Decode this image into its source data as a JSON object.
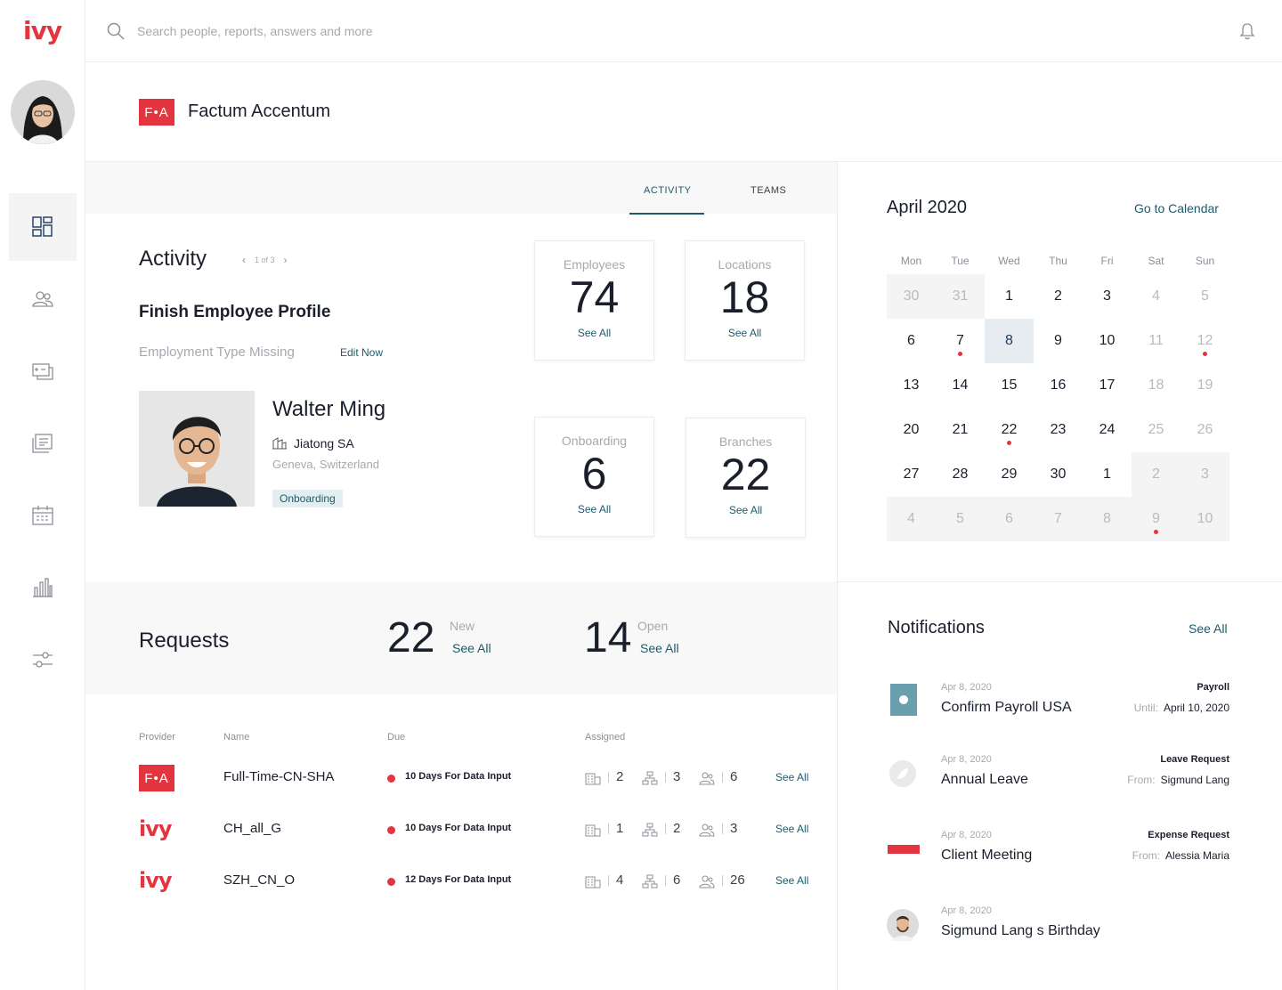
{
  "app": {
    "logo": "ivy"
  },
  "search": {
    "placeholder": "Search people, reports, answers and more"
  },
  "company": {
    "badge": "F•A",
    "name": "Factum Accentum"
  },
  "tabs": [
    {
      "label": "ACTIVITY",
      "active": true
    },
    {
      "label": "TEAMS",
      "active": false
    }
  ],
  "activity": {
    "title": "Activity",
    "pager": "1 of 3",
    "task_title": "Finish  Employee Profile",
    "task_sub": "Employment Type Missing",
    "edit_label": "Edit Now",
    "person": {
      "name": "Walter Ming",
      "company": "Jiatong SA",
      "location": "Geneva, Switzerland",
      "status": "Onboarding"
    }
  },
  "stats": [
    {
      "label": "Employees",
      "value": "74",
      "link": "See All"
    },
    {
      "label": "Locations",
      "value": "18",
      "link": "See All"
    },
    {
      "label": "Onboarding",
      "value": "6",
      "link": "See All"
    },
    {
      "label": "Branches",
      "value": "22",
      "link": "See All"
    }
  ],
  "requests": {
    "title": "Requests",
    "new_count": "22",
    "new_label": "New",
    "new_link": "See All",
    "open_count": "14",
    "open_label": "Open",
    "open_link": "See All"
  },
  "table": {
    "headers": {
      "provider": "Provider",
      "name": "Name",
      "due": "Due",
      "assigned": "Assigned"
    },
    "rows": [
      {
        "provider": "F•A",
        "provider_type": "fa",
        "name": "Full-Time-CN-SHA",
        "due": "10 Days For Data Input",
        "a1": "2",
        "a2": "3",
        "a3": "6",
        "link": "See All"
      },
      {
        "provider": "ivy",
        "provider_type": "ivy",
        "name": "CH_all_G",
        "due": "10 Days For Data Input",
        "a1": "1",
        "a2": "2",
        "a3": "3",
        "link": "See All"
      },
      {
        "provider": "ivy",
        "provider_type": "ivy",
        "name": "SZH_CN_O",
        "due": "12 Days For Data Input",
        "a1": "4",
        "a2": "6",
        "a3": "26",
        "link": "See All"
      }
    ]
  },
  "calendar": {
    "title": "April 2020",
    "link": "Go to Calendar",
    "weekdays": [
      "Mon",
      "Tue",
      "Wed",
      "Thu",
      "Fri",
      "Sat",
      "Sun"
    ],
    "weeks": [
      [
        "30",
        "31",
        "1",
        "2",
        "3",
        "4",
        "5"
      ],
      [
        "6",
        "7",
        "8",
        "9",
        "10",
        "11",
        "12"
      ],
      [
        "13",
        "14",
        "15",
        "16",
        "17",
        "18",
        "19"
      ],
      [
        "20",
        "21",
        "22",
        "23",
        "24",
        "25",
        "26"
      ],
      [
        "27",
        "28",
        "29",
        "30",
        "1",
        "2",
        "3"
      ],
      [
        "4",
        "5",
        "6",
        "7",
        "8",
        "9",
        "10"
      ]
    ],
    "selected_day": "8",
    "event_days": [
      "7",
      "12",
      "22",
      "9 (May)"
    ]
  },
  "notifications": {
    "title": "Notifications",
    "link": "See All",
    "items": [
      {
        "date": "Apr 8, 2020",
        "title": "Confirm Payroll USA",
        "type": "Payroll",
        "meta_key": "Until:",
        "meta_val": "April 10, 2020",
        "icon": "payroll-icon"
      },
      {
        "date": "Apr 8, 2020",
        "title": "Annual Leave",
        "type": "Leave Request",
        "meta_key": "From:",
        "meta_val": "Sigmund Lang",
        "icon": "leave-icon"
      },
      {
        "date": "Apr 8, 2020",
        "title": "Client Meeting",
        "type": "Expense Request",
        "meta_key": "From:",
        "meta_val": "Alessia Maria",
        "icon": "expense-icon"
      },
      {
        "date": "Apr 8, 2020",
        "title": "Sigmund Lang s Birthday",
        "type": "",
        "meta_key": "",
        "meta_val": "",
        "icon": "birthday-avatar"
      }
    ]
  },
  "colors": {
    "brand": "#e4343f",
    "accent": "#1d5a6b"
  }
}
